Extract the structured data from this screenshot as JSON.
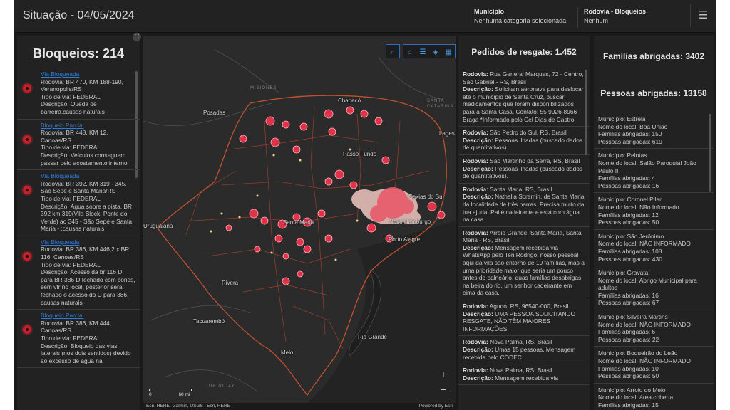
{
  "header": {
    "title": "Situação - 04/05/2024",
    "selectors": [
      {
        "label": "Município",
        "value": "Nenhuma categoria selecionada"
      },
      {
        "label": "Rodovia - Bloqueios",
        "value": "Nenhum"
      }
    ],
    "menu_icon": "hamburger-icon"
  },
  "blocks": {
    "title": "Bloqueios: 214",
    "items": [
      {
        "status": "Via Bloqueada",
        "rodovia": "Rodovia: BR 470, KM 188-190, Veranópolis/RS",
        "tipo": "Tipo de via: FEDERAL",
        "descricao": "Descrição: Queda de barreira.causas naturais"
      },
      {
        "status": "Bloqueio Parcial",
        "rodovia": "Rodovia: BR 448, KM 12, Canoas/RS",
        "tipo": "Tipo de via: FEDERAL",
        "descricao": "Descrição: Veículos conseguem passar pelo acostamento interno."
      },
      {
        "status": "Via Bloqueada",
        "rodovia": "Rodovia: BR 392, KM 319 - 345, São Sepé e Santa Maria/RS",
        "tipo": "Tipo de via: FEDERAL",
        "descricao": "Descrição: Água sobre a pista. BR 392 km 319(Vila Block, Ponte do Verde) ao 345 - São Sepé e Santa Maria - ;causas naturais"
      },
      {
        "status": "Via Bloqueada",
        "rodovia": "Rodovia: BR 386, KM 446,2 x BR 116, Canoas/RS",
        "tipo": "Tipo de via: FEDERAL",
        "descricao": "Descrição: Acesso da br 116 D para BR 386 D fechado com cones, sem vtr no local, posterior sera fechado o acesso do C para 386, causas naturais"
      },
      {
        "status": "Bloqueio Parcial",
        "rodovia": "Rodovia: BR 386, KM 444, Canoas/RS",
        "tipo": "Tipo de via: FEDERAL",
        "descricao": "Descrição: Bloqueio das vias laterais (nos dois sentidos) devido ao excesso de água na"
      }
    ]
  },
  "map": {
    "tools": [
      "search-icon",
      "home-icon",
      "list-icon",
      "layers-icon",
      "legend-icon"
    ],
    "cities": [
      "Chapecó",
      "Posadas",
      "Passo Fundo",
      "Lages",
      "Santa Maria",
      "Porto Alegre",
      "Rivera",
      "Tacuarembó",
      "Rio Grande",
      "Melo",
      "Uruguaiana",
      "Caxias do Sul",
      "Novo Hamburgo"
    ],
    "regions": [
      "MISIONES",
      "SANTA CATARINA",
      "URUGUAY"
    ],
    "scale": {
      "zero": "0",
      "label": "60 mi"
    },
    "attribution": "Esri, HERE, Garmin, USGS | Esri, HERE",
    "powered": "Powered by Esri",
    "zoom_in": "+",
    "zoom_out": "−"
  },
  "requests": {
    "title": "Pedidos de resgate: 1.452",
    "items": [
      {
        "rodovia": "Rua General Marques, 72 - Centro, São Gabriel - RS, Brasil",
        "descricao": "Solicitam aeronave para deslocar até o município de Santa Cruz, buscar medicamentos que foram disponibilizados para a Santa Casa. Contato: 55 9926-8966 Braga *Informado pelo Cel Dias de Castro"
      },
      {
        "rodovia": "São Pedro do Sul, RS, Brasil",
        "descricao": "Pessoas ilhadas (buscado dados de quantitativos)."
      },
      {
        "rodovia": "São Martinho da Serra, RS, Brasil",
        "descricao": "Pessoas ilhadas (buscado dados de quantitativos)."
      },
      {
        "rodovia": "Santa Maria, RS, Brasil",
        "descricao": "Nathalia Scremin, de Santa Maria da localidade de três barras. Precisa muito da tua ajuda. Pai é cadeirante e está com água na casa."
      },
      {
        "rodovia": "Arroio Grande, Santa Maria, Santa Maria - RS, Brasil",
        "descricao": "Mensagem recebida via WhatsApp pelo Ten Rodrigo, nosso pessoal aqui da vila são entorno de 10 famílias, mas a uma prioridade maior que seria um pouco antes do balneário, duas famílias desabrigas na beira do rio, um senhor cadeirante em cima da casa."
      },
      {
        "rodovia": "Agudo, RS, 96540-000, Brasil",
        "descricao": "UMA PESSOA SOLICITANDO RESGATE, NÃO TÊM MAIORES INFORMAÇÕES."
      },
      {
        "rodovia": "Nova Palma, RS, Brasil",
        "descricao": "Umas 15 pessoas. Mensagem recebida pelo CODEC."
      },
      {
        "rodovia": "Nova Palma, RS, Brasil",
        "descricao": "Mensagem recebida via"
      }
    ],
    "rodovia_label": "Rodovia:",
    "descricao_label": "Descrição:"
  },
  "families": {
    "title": "Famílias abrigadas: 3402",
    "people": "Pessoas abrigadas: 13158",
    "items": [
      {
        "municipio": "Município: Estrela",
        "local": "Nome do local: Boa União",
        "familias": "Famílias abrigadas: 150",
        "pessoas": "Pessoas abrigadas: 619"
      },
      {
        "municipio": "Município: Pelotas",
        "local": "Nome do local: Salão Paroquial João Paulo II",
        "familias": "Famílias abrigadas: 4",
        "pessoas": "Pessoas abrigadas: 16"
      },
      {
        "municipio": "Município: Coronel Pilar",
        "local": "Nome do local: Não Informado",
        "familias": "Famílias abrigadas: 12",
        "pessoas": "Pessoas abrigadas: 50"
      },
      {
        "municipio": "Município: São Jerônimo",
        "local": "Nome do local: NÃO INFORMADO",
        "familias": "Famílias abrigadas: 108",
        "pessoas": "Pessoas abrigadas: 430"
      },
      {
        "municipio": "Município: Gravataí",
        "local": "Nome do local: Abrigo Municipal para adultos",
        "familias": "Famílias abrigadas: 16",
        "pessoas": "Pessoas abrigadas: 67"
      },
      {
        "municipio": "Município: Silveira Martins",
        "local": "Nome do local: NÃO INFORMADO",
        "familias": "Famílias abrigadas: 6",
        "pessoas": "Pessoas abrigadas: 22"
      },
      {
        "municipio": "Município: Boqueirão do Leão",
        "local": "Nome do local: NÃO INFORMADO",
        "familias": "Famílias abrigadas: 10",
        "pessoas": "Pessoas abrigadas: 50"
      },
      {
        "municipio": "Município: Arroio do Meio",
        "local": "Nome do local: área coberta",
        "familias": "Famílias abrigadas: 15",
        "pessoas": ""
      }
    ]
  }
}
